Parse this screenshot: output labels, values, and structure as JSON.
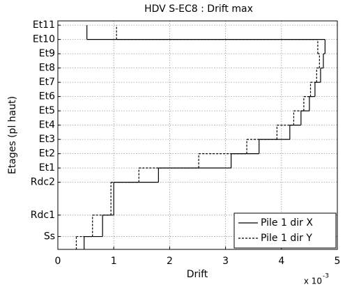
{
  "chart_data": {
    "type": "stairs",
    "title": "HDV S-EC8 : Drift max",
    "xlabel": "Drift",
    "ylabel": "Etages (pl haut)",
    "x_multiplier": "x 10",
    "x_exponent": "-3",
    "xlim": [
      0,
      5
    ],
    "xticks": [
      0,
      1,
      2,
      3,
      4,
      5
    ],
    "ylim": [
      -0.9,
      15.1
    ],
    "yticks": [
      {
        "value": 0,
        "label": "Ss"
      },
      {
        "value": 1.5,
        "label": "Rdc1"
      },
      {
        "value": 3.8,
        "label": "Rdc2"
      },
      {
        "value": 4.8,
        "label": "Et1"
      },
      {
        "value": 5.8,
        "label": "Et2"
      },
      {
        "value": 6.8,
        "label": "Et3"
      },
      {
        "value": 7.8,
        "label": "Et4"
      },
      {
        "value": 8.8,
        "label": "Et5"
      },
      {
        "value": 9.8,
        "label": "Et6"
      },
      {
        "value": 10.8,
        "label": "Et7"
      },
      {
        "value": 11.8,
        "label": "Et8"
      },
      {
        "value": 12.8,
        "label": "Et9"
      },
      {
        "value": 13.8,
        "label": "Et10"
      },
      {
        "value": 14.8,
        "label": "Et11"
      }
    ],
    "y_edges": [
      -0.9,
      0,
      1.5,
      3.8,
      4.8,
      5.8,
      6.8,
      7.8,
      8.8,
      9.8,
      10.8,
      11.8,
      12.8,
      13.8,
      14.8
    ],
    "grid": true,
    "legend": "lower right",
    "series": [
      {
        "name": "Pile 1 dir X",
        "color": "#000000",
        "dash": "solid",
        "values": [
          0.47,
          0.8,
          1.0,
          1.8,
          3.1,
          3.6,
          4.15,
          4.35,
          4.5,
          4.6,
          4.7,
          4.75,
          4.78,
          0.52
        ]
      },
      {
        "name": "Pile 1 dir Y",
        "color": "#000000",
        "dash": "dashed",
        "values": [
          0.33,
          0.62,
          0.95,
          1.45,
          2.52,
          3.38,
          3.92,
          4.22,
          4.4,
          4.52,
          4.63,
          4.68,
          4.65,
          1.05
        ]
      }
    ]
  }
}
